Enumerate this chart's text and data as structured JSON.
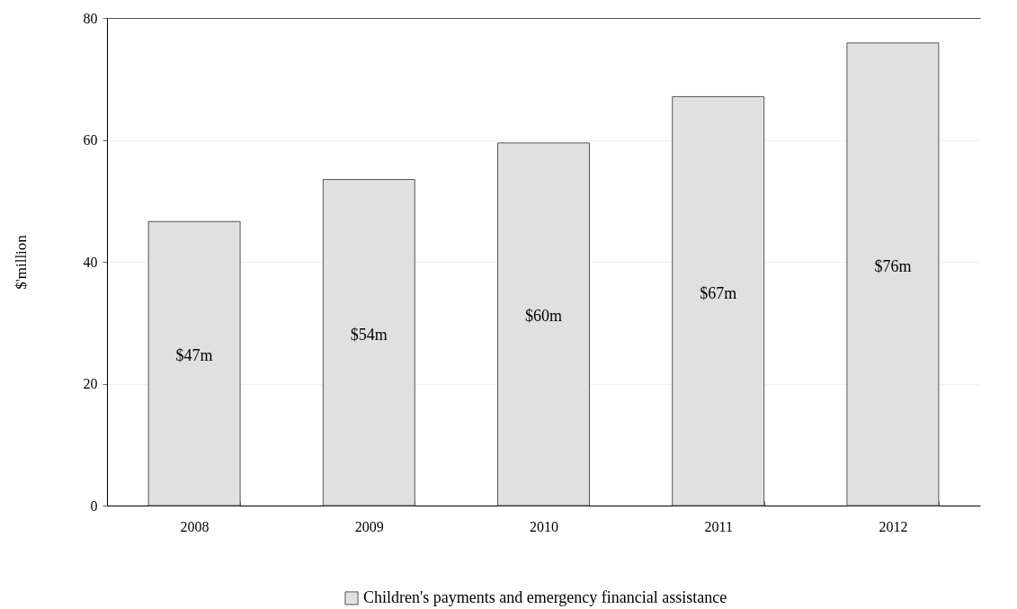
{
  "chart_data": {
    "type": "bar",
    "ylabel": "$'million",
    "categories": [
      "2008",
      "2009",
      "2010",
      "2011",
      "2012"
    ],
    "series": [
      {
        "name": "Children's payments and emergency financial assistance",
        "color": "#e0e0e0",
        "values": [
          46.6,
          53.5,
          59.5,
          67.1,
          75.9
        ],
        "value_labels": [
          "$47m",
          "$54m",
          "$60m",
          "$67m",
          "$76m"
        ]
      }
    ],
    "ylim": [
      0,
      80
    ],
    "yticks": [
      0,
      20,
      40,
      60,
      80
    ],
    "grid": "y",
    "legend": "bottom"
  }
}
